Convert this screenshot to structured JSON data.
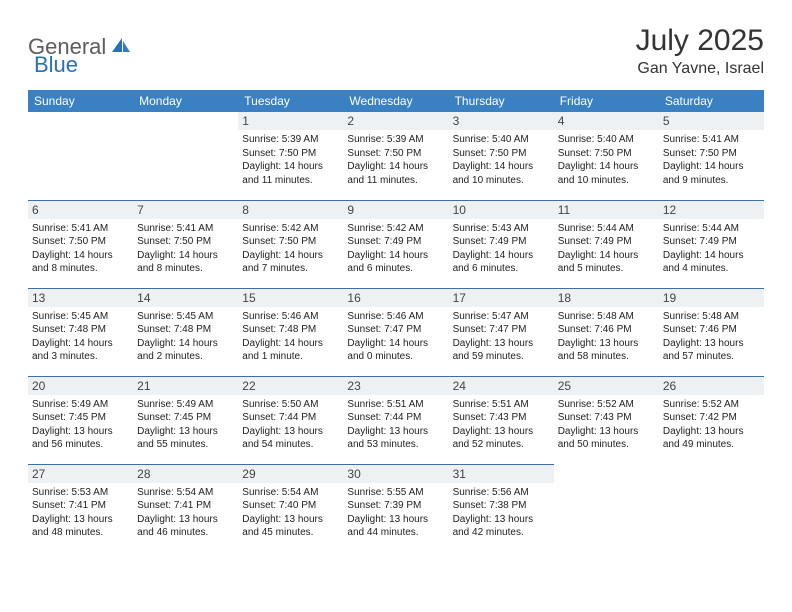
{
  "logo": {
    "word1": "General",
    "word2": "Blue"
  },
  "title": "July 2025",
  "location": "Gan Yavne, Israel",
  "colors": {
    "header_bg": "#3a81c4",
    "header_text": "#ffffff",
    "daynum_bg": "#eef1f4",
    "cell_border": "#3a6fa8",
    "logo_gray": "#5c5c5c",
    "logo_blue": "#2970b8",
    "body_text": "#222222",
    "title_text": "#333333"
  },
  "day_names": [
    "Sunday",
    "Monday",
    "Tuesday",
    "Wednesday",
    "Thursday",
    "Friday",
    "Saturday"
  ],
  "weeks": [
    [
      null,
      null,
      {
        "n": "1",
        "sr": "Sunrise: 5:39 AM",
        "ss": "Sunset: 7:50 PM",
        "d1": "Daylight: 14 hours",
        "d2": "and 11 minutes."
      },
      {
        "n": "2",
        "sr": "Sunrise: 5:39 AM",
        "ss": "Sunset: 7:50 PM",
        "d1": "Daylight: 14 hours",
        "d2": "and 11 minutes."
      },
      {
        "n": "3",
        "sr": "Sunrise: 5:40 AM",
        "ss": "Sunset: 7:50 PM",
        "d1": "Daylight: 14 hours",
        "d2": "and 10 minutes."
      },
      {
        "n": "4",
        "sr": "Sunrise: 5:40 AM",
        "ss": "Sunset: 7:50 PM",
        "d1": "Daylight: 14 hours",
        "d2": "and 10 minutes."
      },
      {
        "n": "5",
        "sr": "Sunrise: 5:41 AM",
        "ss": "Sunset: 7:50 PM",
        "d1": "Daylight: 14 hours",
        "d2": "and 9 minutes."
      }
    ],
    [
      {
        "n": "6",
        "sr": "Sunrise: 5:41 AM",
        "ss": "Sunset: 7:50 PM",
        "d1": "Daylight: 14 hours",
        "d2": "and 8 minutes."
      },
      {
        "n": "7",
        "sr": "Sunrise: 5:41 AM",
        "ss": "Sunset: 7:50 PM",
        "d1": "Daylight: 14 hours",
        "d2": "and 8 minutes."
      },
      {
        "n": "8",
        "sr": "Sunrise: 5:42 AM",
        "ss": "Sunset: 7:50 PM",
        "d1": "Daylight: 14 hours",
        "d2": "and 7 minutes."
      },
      {
        "n": "9",
        "sr": "Sunrise: 5:42 AM",
        "ss": "Sunset: 7:49 PM",
        "d1": "Daylight: 14 hours",
        "d2": "and 6 minutes."
      },
      {
        "n": "10",
        "sr": "Sunrise: 5:43 AM",
        "ss": "Sunset: 7:49 PM",
        "d1": "Daylight: 14 hours",
        "d2": "and 6 minutes."
      },
      {
        "n": "11",
        "sr": "Sunrise: 5:44 AM",
        "ss": "Sunset: 7:49 PM",
        "d1": "Daylight: 14 hours",
        "d2": "and 5 minutes."
      },
      {
        "n": "12",
        "sr": "Sunrise: 5:44 AM",
        "ss": "Sunset: 7:49 PM",
        "d1": "Daylight: 14 hours",
        "d2": "and 4 minutes."
      }
    ],
    [
      {
        "n": "13",
        "sr": "Sunrise: 5:45 AM",
        "ss": "Sunset: 7:48 PM",
        "d1": "Daylight: 14 hours",
        "d2": "and 3 minutes."
      },
      {
        "n": "14",
        "sr": "Sunrise: 5:45 AM",
        "ss": "Sunset: 7:48 PM",
        "d1": "Daylight: 14 hours",
        "d2": "and 2 minutes."
      },
      {
        "n": "15",
        "sr": "Sunrise: 5:46 AM",
        "ss": "Sunset: 7:48 PM",
        "d1": "Daylight: 14 hours",
        "d2": "and 1 minute."
      },
      {
        "n": "16",
        "sr": "Sunrise: 5:46 AM",
        "ss": "Sunset: 7:47 PM",
        "d1": "Daylight: 14 hours",
        "d2": "and 0 minutes."
      },
      {
        "n": "17",
        "sr": "Sunrise: 5:47 AM",
        "ss": "Sunset: 7:47 PM",
        "d1": "Daylight: 13 hours",
        "d2": "and 59 minutes."
      },
      {
        "n": "18",
        "sr": "Sunrise: 5:48 AM",
        "ss": "Sunset: 7:46 PM",
        "d1": "Daylight: 13 hours",
        "d2": "and 58 minutes."
      },
      {
        "n": "19",
        "sr": "Sunrise: 5:48 AM",
        "ss": "Sunset: 7:46 PM",
        "d1": "Daylight: 13 hours",
        "d2": "and 57 minutes."
      }
    ],
    [
      {
        "n": "20",
        "sr": "Sunrise: 5:49 AM",
        "ss": "Sunset: 7:45 PM",
        "d1": "Daylight: 13 hours",
        "d2": "and 56 minutes."
      },
      {
        "n": "21",
        "sr": "Sunrise: 5:49 AM",
        "ss": "Sunset: 7:45 PM",
        "d1": "Daylight: 13 hours",
        "d2": "and 55 minutes."
      },
      {
        "n": "22",
        "sr": "Sunrise: 5:50 AM",
        "ss": "Sunset: 7:44 PM",
        "d1": "Daylight: 13 hours",
        "d2": "and 54 minutes."
      },
      {
        "n": "23",
        "sr": "Sunrise: 5:51 AM",
        "ss": "Sunset: 7:44 PM",
        "d1": "Daylight: 13 hours",
        "d2": "and 53 minutes."
      },
      {
        "n": "24",
        "sr": "Sunrise: 5:51 AM",
        "ss": "Sunset: 7:43 PM",
        "d1": "Daylight: 13 hours",
        "d2": "and 52 minutes."
      },
      {
        "n": "25",
        "sr": "Sunrise: 5:52 AM",
        "ss": "Sunset: 7:43 PM",
        "d1": "Daylight: 13 hours",
        "d2": "and 50 minutes."
      },
      {
        "n": "26",
        "sr": "Sunrise: 5:52 AM",
        "ss": "Sunset: 7:42 PM",
        "d1": "Daylight: 13 hours",
        "d2": "and 49 minutes."
      }
    ],
    [
      {
        "n": "27",
        "sr": "Sunrise: 5:53 AM",
        "ss": "Sunset: 7:41 PM",
        "d1": "Daylight: 13 hours",
        "d2": "and 48 minutes."
      },
      {
        "n": "28",
        "sr": "Sunrise: 5:54 AM",
        "ss": "Sunset: 7:41 PM",
        "d1": "Daylight: 13 hours",
        "d2": "and 46 minutes."
      },
      {
        "n": "29",
        "sr": "Sunrise: 5:54 AM",
        "ss": "Sunset: 7:40 PM",
        "d1": "Daylight: 13 hours",
        "d2": "and 45 minutes."
      },
      {
        "n": "30",
        "sr": "Sunrise: 5:55 AM",
        "ss": "Sunset: 7:39 PM",
        "d1": "Daylight: 13 hours",
        "d2": "and 44 minutes."
      },
      {
        "n": "31",
        "sr": "Sunrise: 5:56 AM",
        "ss": "Sunset: 7:38 PM",
        "d1": "Daylight: 13 hours",
        "d2": "and 42 minutes."
      },
      null,
      null
    ]
  ]
}
